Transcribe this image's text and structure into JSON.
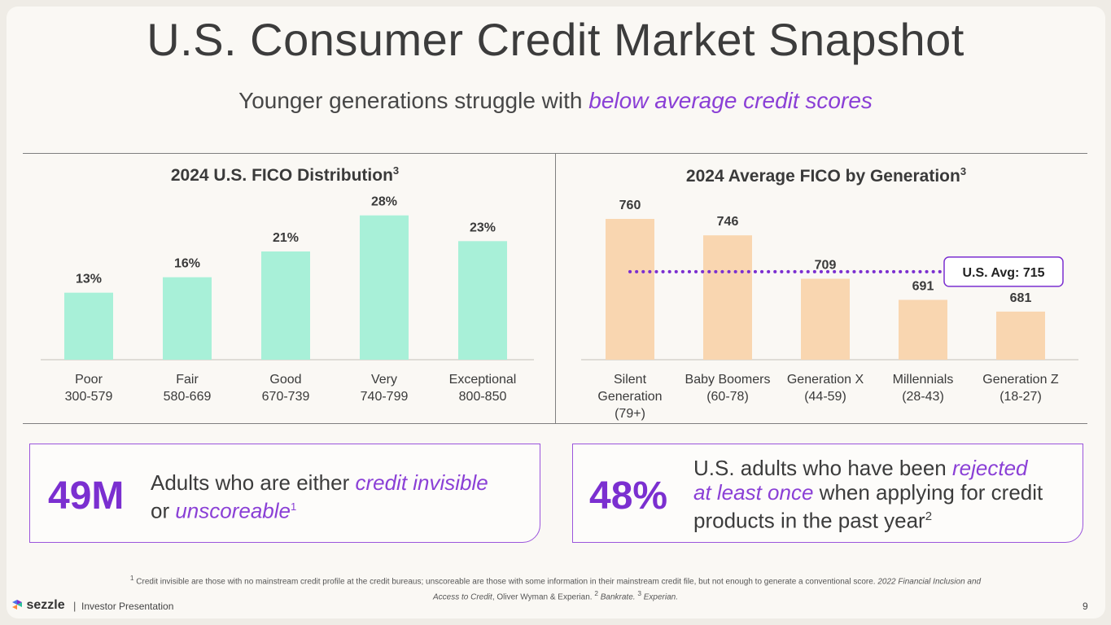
{
  "title": "U.S. Consumer Credit Market Snapshot",
  "subtitle": {
    "prefix": "Younger generations struggle with ",
    "highlight": "below average credit scores"
  },
  "colors": {
    "accent": "#8a3fd6",
    "mint_bar": "#a8f0d8",
    "peach_bar": "#f9d6b0",
    "avg_line": "#7b2fd0"
  },
  "chart_data": [
    {
      "type": "bar",
      "title": "2024 U.S. FICO Distribution",
      "title_sup": "3",
      "categories": [
        "Poor",
        "Fair",
        "Good",
        "Very",
        "Exceptional"
      ],
      "ranges": [
        "300-579",
        "580-669",
        "670-739",
        "740-799",
        "800-850"
      ],
      "values": [
        13,
        16,
        21,
        28,
        23
      ],
      "value_labels": [
        "13%",
        "16%",
        "21%",
        "28%",
        "23%"
      ],
      "ylim": [
        0,
        30
      ],
      "grid": false
    },
    {
      "type": "bar",
      "title": "2024 Average FICO by Generation",
      "title_sup": "3",
      "categories": [
        "Silent Generation",
        "Baby Boomers",
        "Generation X",
        "Millennials",
        "Generation Z"
      ],
      "category_lines": [
        [
          "Silent",
          "Generation",
          "(79+)"
        ],
        [
          "Baby Boomers",
          "(60-78)"
        ],
        [
          "Generation X",
          "(44-59)"
        ],
        [
          "Millennials",
          "(28-43)"
        ],
        [
          "Generation Z",
          "(18-27)"
        ]
      ],
      "values": [
        760,
        746,
        709,
        691,
        681
      ],
      "value_labels": [
        "760",
        "746",
        "709",
        "691",
        "681"
      ],
      "ylim": [
        640,
        765
      ],
      "reference_line": {
        "value": 715,
        "label": "U.S. Avg: 715"
      },
      "grid": false
    }
  ],
  "stat_left": {
    "number": "49M",
    "text_prefix": "Adults who are either ",
    "highlight1": "credit invisible",
    "text_mid": "or ",
    "highlight2": "unscoreable",
    "sup": "1"
  },
  "stat_right": {
    "number": "48%",
    "line1_prefix": "U.S. adults who have been ",
    "highlight_a": "rejected",
    "highlight_b": "at least once",
    "line2_suffix": " when applying for credit",
    "line3": "products in the past year",
    "sup": "2"
  },
  "footnote": {
    "s1": "1",
    "t1": " Credit invisible are those with no mainstream credit profile at the credit bureaus; unscoreable are those with some information in their mainstream credit file, but not enough to generate a conventional score. ",
    "i1": "2022 Financial Inclusion and Access to Credit",
    "t2": ", Oliver Wyman & Experian. ",
    "s2": "2",
    "i2": " Bankrate. ",
    "s3": "3",
    "i3": " Experian."
  },
  "footer": {
    "brand": "sezzle",
    "separator": "|",
    "label": "Investor Presentation",
    "page": "9"
  }
}
